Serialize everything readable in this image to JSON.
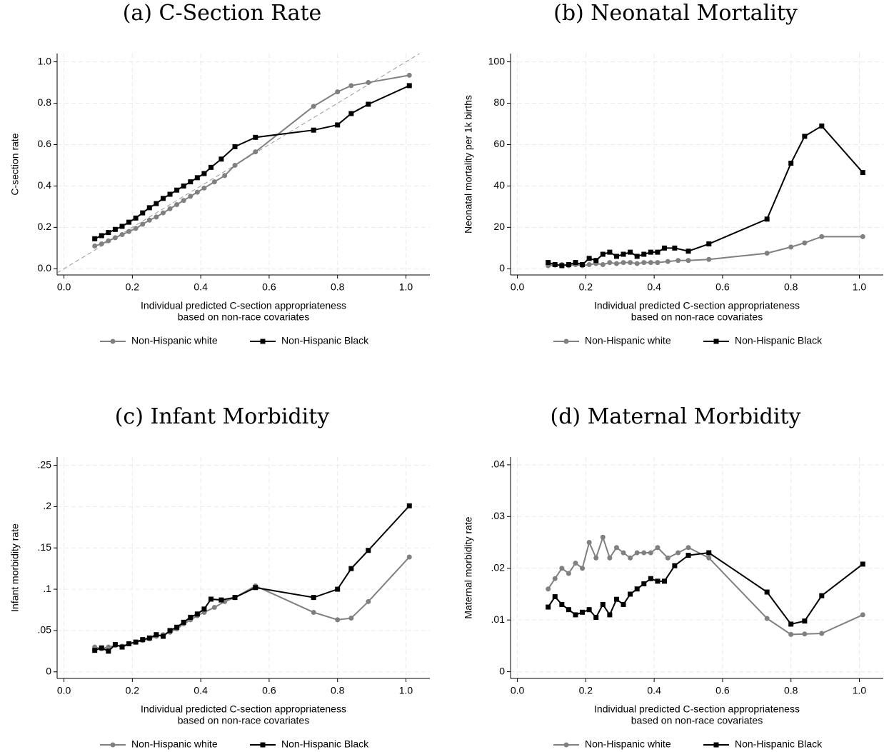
{
  "chart_data": [
    {
      "type": "line",
      "title": "(a) C-Section Rate",
      "xlabel": [
        "Individual predicted C-section appropriateness",
        "based on non-race covariates"
      ],
      "ylabel": "C-section rate",
      "xlim": [
        -0.02,
        1.07
      ],
      "ylim": [
        -0.03,
        1.04
      ],
      "grid": true,
      "diagonal": true,
      "xticks": [
        {
          "value": 0,
          "label": "0.0"
        },
        0.2,
        0.4,
        0.6,
        0.8,
        {
          "value": 1,
          "label": "1.0"
        }
      ],
      "yticks": [
        {
          "value": 0,
          "label": "0.0"
        },
        0.2,
        0.4,
        0.6,
        0.8,
        {
          "value": 1,
          "label": "1.0"
        }
      ],
      "series": [
        {
          "name": "Non-Hispanic white",
          "color": "#808080",
          "marker": "circle",
          "x": [
            0.09,
            0.11,
            0.13,
            0.15,
            0.17,
            0.19,
            0.21,
            0.23,
            0.25,
            0.27,
            0.29,
            0.31,
            0.33,
            0.35,
            0.37,
            0.39,
            0.41,
            0.44,
            0.47,
            0.5,
            0.56,
            0.73,
            0.8,
            0.84,
            0.89,
            1.01
          ],
          "values": [
            0.11,
            0.12,
            0.135,
            0.15,
            0.165,
            0.18,
            0.195,
            0.215,
            0.235,
            0.25,
            0.27,
            0.29,
            0.31,
            0.33,
            0.35,
            0.37,
            0.39,
            0.42,
            0.45,
            0.5,
            0.565,
            0.785,
            0.855,
            0.885,
            0.9,
            0.935
          ]
        },
        {
          "name": "Non-Hispanic Black",
          "color": "#000000",
          "marker": "square",
          "x": [
            0.09,
            0.11,
            0.13,
            0.15,
            0.17,
            0.19,
            0.21,
            0.23,
            0.25,
            0.27,
            0.29,
            0.31,
            0.33,
            0.35,
            0.37,
            0.39,
            0.41,
            0.43,
            0.46,
            0.5,
            0.56,
            0.73,
            0.8,
            0.84,
            0.89,
            1.01
          ],
          "values": [
            0.145,
            0.16,
            0.175,
            0.19,
            0.205,
            0.225,
            0.245,
            0.27,
            0.295,
            0.315,
            0.34,
            0.36,
            0.38,
            0.4,
            0.42,
            0.44,
            0.46,
            0.49,
            0.53,
            0.59,
            0.635,
            0.67,
            0.695,
            0.75,
            0.795,
            0.885
          ]
        }
      ]
    },
    {
      "type": "line",
      "title": "(b) Neonatal Mortality",
      "xlabel": [
        "Individual predicted C-section appropriateness",
        "based on non-race covariates"
      ],
      "ylabel": "Neonatal mortality per 1k births",
      "xlim": [
        -0.02,
        1.07
      ],
      "ylim": [
        -3,
        104
      ],
      "grid": true,
      "xticks": [
        {
          "value": 0,
          "label": "0.0"
        },
        0.2,
        0.4,
        0.6,
        0.8,
        {
          "value": 1,
          "label": "1.0"
        }
      ],
      "yticks": [
        0,
        20,
        40,
        60,
        80,
        100
      ],
      "series": [
        {
          "name": "Non-Hispanic white",
          "color": "#808080",
          "marker": "circle",
          "x": [
            0.09,
            0.11,
            0.13,
            0.15,
            0.17,
            0.19,
            0.21,
            0.23,
            0.25,
            0.27,
            0.29,
            0.31,
            0.33,
            0.35,
            0.37,
            0.39,
            0.41,
            0.44,
            0.47,
            0.5,
            0.56,
            0.73,
            0.8,
            0.84,
            0.89,
            1.01
          ],
          "values": [
            1.5,
            1.8,
            2,
            1.5,
            2,
            1.5,
            2,
            2.5,
            2,
            3,
            2.5,
            3,
            3,
            2.5,
            3,
            3,
            3,
            3.5,
            4,
            4,
            4.5,
            7.5,
            10.5,
            12.5,
            15.5,
            15.5
          ]
        },
        {
          "name": "Non-Hispanic Black",
          "color": "#000000",
          "marker": "square",
          "x": [
            0.09,
            0.11,
            0.13,
            0.15,
            0.17,
            0.19,
            0.21,
            0.23,
            0.25,
            0.27,
            0.29,
            0.31,
            0.33,
            0.35,
            0.37,
            0.39,
            0.41,
            0.43,
            0.46,
            0.5,
            0.56,
            0.73,
            0.8,
            0.84,
            0.89,
            1.01
          ],
          "values": [
            3,
            2,
            1.5,
            2,
            3,
            2,
            5,
            4,
            7,
            8,
            6,
            7,
            8,
            6,
            7,
            8,
            8,
            10,
            10,
            8.5,
            12,
            24,
            51,
            64,
            69,
            46.5
          ]
        }
      ]
    },
    {
      "type": "line",
      "title": "(c) Infant Morbidity",
      "xlabel": [
        "Individual predicted C-section appropriateness",
        "based on non-race covariates"
      ],
      "ylabel": "Infant morbidity rate",
      "xlim": [
        -0.02,
        1.07
      ],
      "ylim": [
        -0.008,
        0.26
      ],
      "grid": true,
      "xticks": [
        {
          "value": 0,
          "label": "0.0"
        },
        0.2,
        0.4,
        0.6,
        0.8,
        {
          "value": 1,
          "label": "1.0"
        }
      ],
      "yticks": [
        0,
        {
          "value": 0.05,
          "label": ".05"
        },
        {
          "value": 0.1,
          "label": ".1"
        },
        {
          "value": 0.15,
          "label": ".15"
        },
        {
          "value": 0.2,
          "label": ".2"
        },
        {
          "value": 0.25,
          "label": ".25"
        }
      ],
      "series": [
        {
          "name": "Non-Hispanic white",
          "color": "#808080",
          "marker": "circle",
          "x": [
            0.09,
            0.11,
            0.13,
            0.15,
            0.17,
            0.19,
            0.21,
            0.23,
            0.25,
            0.27,
            0.29,
            0.31,
            0.33,
            0.35,
            0.37,
            0.39,
            0.41,
            0.44,
            0.47,
            0.5,
            0.56,
            0.73,
            0.8,
            0.84,
            0.89,
            1.01
          ],
          "values": [
            0.03,
            0.028,
            0.03,
            0.032,
            0.031,
            0.034,
            0.036,
            0.038,
            0.04,
            0.043,
            0.045,
            0.048,
            0.052,
            0.058,
            0.063,
            0.068,
            0.072,
            0.078,
            0.085,
            0.09,
            0.104,
            0.072,
            0.063,
            0.065,
            0.085,
            0.139
          ]
        },
        {
          "name": "Non-Hispanic Black",
          "color": "#000000",
          "marker": "square",
          "x": [
            0.09,
            0.11,
            0.13,
            0.15,
            0.17,
            0.19,
            0.21,
            0.23,
            0.25,
            0.27,
            0.29,
            0.31,
            0.33,
            0.35,
            0.37,
            0.39,
            0.41,
            0.43,
            0.46,
            0.5,
            0.56,
            0.73,
            0.8,
            0.84,
            0.89,
            1.01
          ],
          "values": [
            0.026,
            0.029,
            0.025,
            0.033,
            0.03,
            0.034,
            0.036,
            0.039,
            0.041,
            0.045,
            0.043,
            0.05,
            0.054,
            0.06,
            0.066,
            0.07,
            0.076,
            0.088,
            0.087,
            0.09,
            0.102,
            0.09,
            0.1,
            0.125,
            0.147,
            0.201
          ]
        }
      ]
    },
    {
      "type": "line",
      "title": "(d) Maternal Morbidity",
      "xlabel": [
        "Individual predicted C-section appropriateness",
        "based on non-race covariates"
      ],
      "ylabel": "Maternal morbidity rate",
      "xlim": [
        -0.02,
        1.07
      ],
      "ylim": [
        -0.0013,
        0.0415
      ],
      "grid": true,
      "xticks": [
        {
          "value": 0,
          "label": "0.0"
        },
        0.2,
        0.4,
        0.6,
        0.8,
        {
          "value": 1,
          "label": "1.0"
        }
      ],
      "yticks": [
        0,
        {
          "value": 0.01,
          "label": ".01"
        },
        {
          "value": 0.02,
          "label": ".02"
        },
        {
          "value": 0.03,
          "label": ".03"
        },
        {
          "value": 0.04,
          "label": ".04"
        }
      ],
      "series": [
        {
          "name": "Non-Hispanic white",
          "color": "#808080",
          "marker": "circle",
          "x": [
            0.09,
            0.11,
            0.13,
            0.15,
            0.17,
            0.19,
            0.21,
            0.23,
            0.25,
            0.27,
            0.29,
            0.31,
            0.33,
            0.35,
            0.37,
            0.39,
            0.41,
            0.44,
            0.47,
            0.5,
            0.56,
            0.73,
            0.8,
            0.84,
            0.89,
            1.01
          ],
          "values": [
            0.016,
            0.018,
            0.02,
            0.019,
            0.021,
            0.02,
            0.025,
            0.022,
            0.026,
            0.022,
            0.024,
            0.023,
            0.022,
            0.023,
            0.023,
            0.023,
            0.024,
            0.022,
            0.023,
            0.024,
            0.022,
            0.0103,
            0.0072,
            0.0073,
            0.0074,
            0.011
          ]
        },
        {
          "name": "Non-Hispanic Black",
          "color": "#000000",
          "marker": "square",
          "x": [
            0.09,
            0.11,
            0.13,
            0.15,
            0.17,
            0.19,
            0.21,
            0.23,
            0.25,
            0.27,
            0.29,
            0.31,
            0.33,
            0.35,
            0.37,
            0.39,
            0.41,
            0.43,
            0.46,
            0.5,
            0.56,
            0.73,
            0.8,
            0.84,
            0.89,
            1.01
          ],
          "values": [
            0.0125,
            0.0145,
            0.013,
            0.012,
            0.011,
            0.0115,
            0.012,
            0.0105,
            0.013,
            0.011,
            0.014,
            0.013,
            0.015,
            0.016,
            0.017,
            0.018,
            0.0175,
            0.0175,
            0.0205,
            0.0225,
            0.023,
            0.0154,
            0.0092,
            0.0098,
            0.0147,
            0.0208
          ]
        }
      ]
    }
  ]
}
